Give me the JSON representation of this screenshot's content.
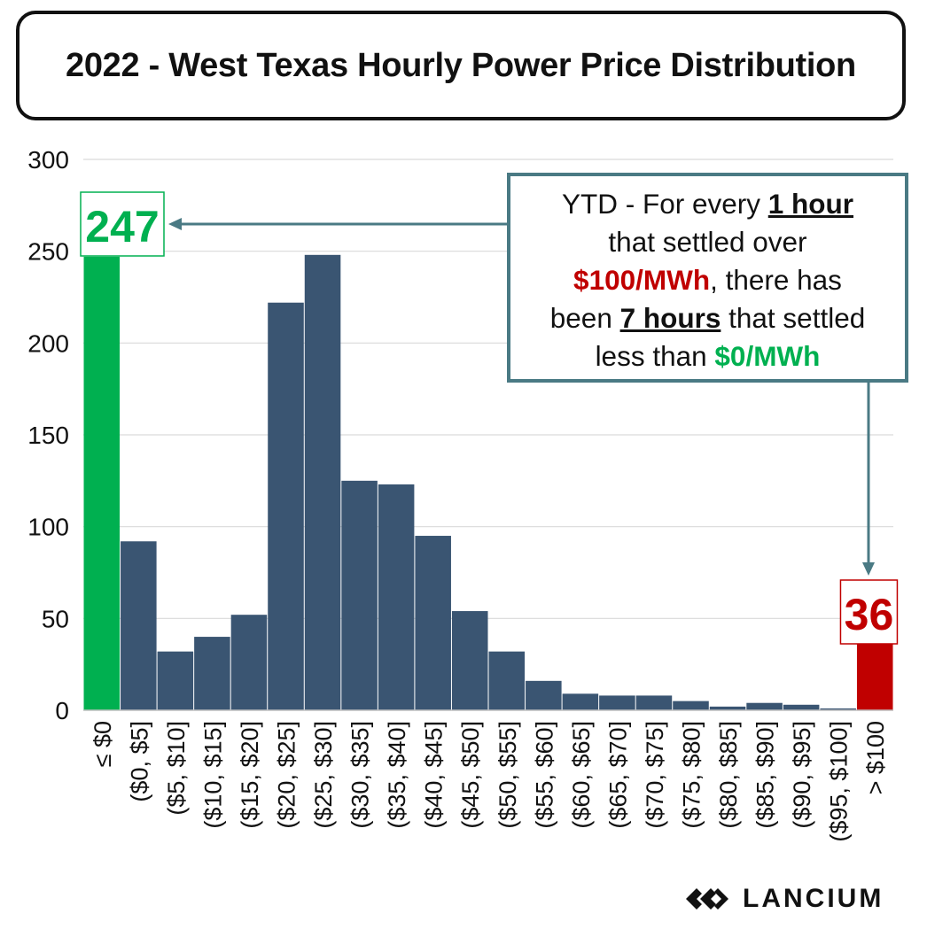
{
  "title": "2022 - West Texas Hourly Power Price Distribution",
  "callout": {
    "line1_pre": "YTD - For every ",
    "line1_bold": "1 hour",
    "line2": "that settled over",
    "line3_red": "$100/MWh",
    "line3_post": ", there has",
    "line4_pre": "been ",
    "line4_bold": "7 hours",
    "line4_post": " that settled",
    "line5_pre": "less than ",
    "line5_green": "$0/MWh"
  },
  "logo": {
    "text": "LANCIUM",
    "icon": "lancium-logo-icon"
  },
  "colors": {
    "bar": "#3a5572",
    "low": "#00b050",
    "high": "#c00000",
    "arrow": "#4a7a84"
  },
  "chart_data": {
    "type": "bar",
    "title": "2022 - West Texas Hourly Power Price Distribution",
    "xlabel": "",
    "ylabel": "",
    "ylim": [
      0,
      300
    ],
    "yticks": [
      0,
      50,
      100,
      150,
      200,
      250,
      300
    ],
    "grid": true,
    "categories": [
      "≤ $0",
      "($0, $5]",
      "($5, $10]",
      "($10, $15]",
      "($15, $20]",
      "($20, $25]",
      "($25, $30]",
      "($30, $35]",
      "($35, $40]",
      "($40, $45]",
      "($45, $50]",
      "($50, $55]",
      "($55, $60]",
      "($60, $65]",
      "($65, $70]",
      "($70, $75]",
      "($75, $80]",
      "($80, $85]",
      "($85, $90]",
      "($90, $95]",
      "($95, $100]",
      "> $100"
    ],
    "values": [
      247,
      92,
      32,
      40,
      52,
      222,
      248,
      125,
      123,
      95,
      54,
      32,
      16,
      9,
      8,
      8,
      5,
      2,
      4,
      3,
      1,
      36
    ],
    "highlight": {
      "first": "low",
      "last": "high"
    },
    "data_labels": [
      {
        "category": "≤ $0",
        "text": "247"
      },
      {
        "category": "> $100",
        "text": "36"
      }
    ]
  }
}
